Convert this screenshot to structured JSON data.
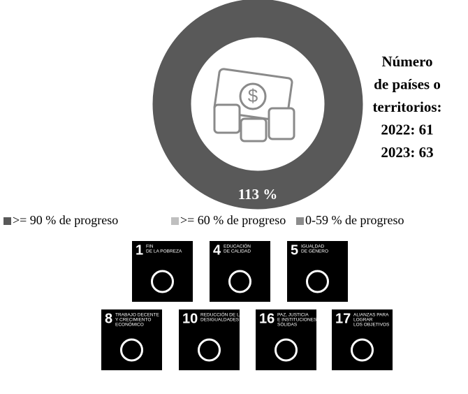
{
  "chart_data": {
    "type": "donut",
    "values": [
      113
    ],
    "value_labels": [
      "113 %"
    ],
    "color": "#595959",
    "legend": [
      {
        "name": ">= 90 % de progreso",
        "color": "#595959"
      },
      {
        "name": ">= 60 % de progreso",
        "color": "#bfbfbf"
      },
      {
        "name": "0-59 % de progreso",
        "color": "#8c8c8c"
      }
    ],
    "side_text": [
      "Número",
      "de países o",
      "territorios:",
      "2022: 61",
      "2023: 63"
    ]
  },
  "sdg_icons": [
    {
      "number": 1,
      "label": [
        "FIN",
        "DE LA POBREZA"
      ]
    },
    {
      "number": 4,
      "label": [
        "EDUCACIÓN",
        "DE CALIDAD"
      ]
    },
    {
      "number": 5,
      "label": [
        "IGUALDAD",
        "DE GÉNERO"
      ]
    },
    {
      "number": 8,
      "label": [
        "TRABAJO DECENTE",
        "Y CRECIMIENTO",
        "ECONÓMICO"
      ]
    },
    {
      "number": 10,
      "label": [
        "REDUCCIÓN DE LAS",
        "DESIGUALDADES"
      ]
    },
    {
      "number": 16,
      "label": [
        "PAZ, JUSTICIA",
        "E INSTITUCIONES",
        "SÓLIDAS"
      ]
    },
    {
      "number": 17,
      "label": [
        "ALIANZAS PARA",
        "LOGRAR",
        "LOS OBJETIVOS"
      ]
    }
  ]
}
